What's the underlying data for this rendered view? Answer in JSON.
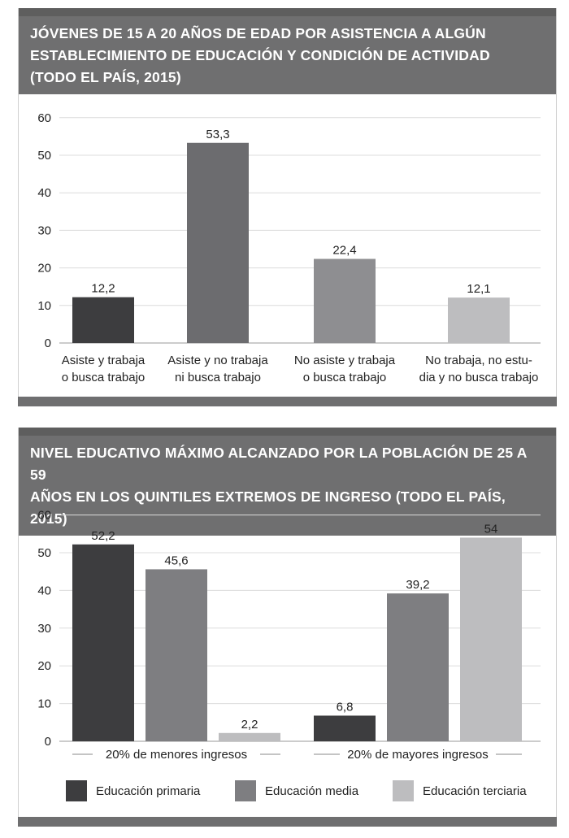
{
  "chart_data": [
    {
      "type": "bar",
      "title": "JÓVENES DE 15 A 20 AÑOS DE EDAD POR ASISTENCIA A ALGÚN ESTABLECIMIENTO DE EDUCACIÓN Y CONDICIÓN DE ACTIVIDAD (TODO EL PAÍS, 2015)",
      "title_lines": [
        "JÓVENES DE 15 A 20 AÑOS DE EDAD POR ASISTENCIA A ALGÚN",
        "ESTABLECIMIENTO DE EDUCACIÓN Y CONDICIÓN DE ACTIVIDAD",
        "(TODO EL PAÍS, 2015)"
      ],
      "categories": [
        [
          "Asiste y trabaja",
          "o busca trabajo"
        ],
        [
          "Asiste y no trabaja",
          "ni busca trabajo"
        ],
        [
          "No asiste y trabaja",
          "o busca trabajo"
        ],
        [
          "No trabaja, no estu-",
          "dia y no busca trabajo"
        ]
      ],
      "values": [
        12.2,
        53.3,
        22.4,
        12.1
      ],
      "value_labels": [
        "12,2",
        "53,3",
        "22,4",
        "12,1"
      ],
      "colors": [
        "#3d3d3f",
        "#6c6c6f",
        "#8e8e91",
        "#bdbdbf"
      ],
      "yticks": [
        "0",
        "10",
        "20",
        "30",
        "40",
        "50",
        "60"
      ],
      "ylim": [
        0,
        60
      ],
      "grid": true
    },
    {
      "type": "bar",
      "title": "NIVEL EDUCATIVO MÁXIMO ALCANZADO POR LA POBLACIÓN DE 25 A 59 AÑOS EN LOS QUINTILES EXTREMOS DE INGRESO (TODO EL PAÍS, 2015)",
      "title_lines": [
        "NIVEL EDUCATIVO MÁXIMO ALCANZADO POR LA POBLACIÓN DE 25 A 59",
        "AÑOS EN LOS QUINTILES EXTREMOS DE INGRESO (TODO EL PAÍS, 2015)"
      ],
      "categories": [
        "20% de menores ingresos",
        "20% de mayores ingresos"
      ],
      "series": [
        {
          "name": "Educación primaria",
          "values": [
            52.2,
            6.8
          ],
          "value_labels": [
            "52,2",
            "6,8"
          ],
          "color": "#3d3d3f"
        },
        {
          "name": "Educación media",
          "values": [
            45.6,
            39.2
          ],
          "value_labels": [
            "45,6",
            "39,2"
          ],
          "color": "#7e7e81"
        },
        {
          "name": "Educación terciaria",
          "values": [
            2.2,
            54
          ],
          "value_labels": [
            "2,2",
            "54"
          ],
          "color": "#bdbdbf"
        }
      ],
      "yticks": [
        "0",
        "10",
        "20",
        "30",
        "40",
        "50",
        "60"
      ],
      "ylim": [
        0,
        60
      ],
      "grid": true,
      "legend_position": "bottom"
    }
  ]
}
